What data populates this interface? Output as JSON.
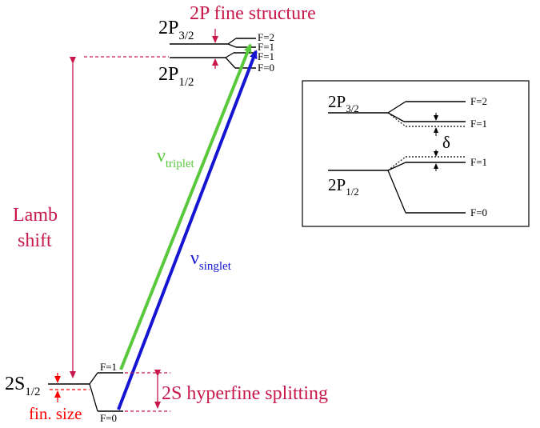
{
  "colors": {
    "crimson": "#c8174b",
    "red": "#ff0000",
    "green": "#5ac83c",
    "blue": "#1414d2",
    "black": "#000000"
  },
  "title_2p_fine": "2P fine structure",
  "levels": {
    "p32": {
      "main": "2P",
      "sub": "3/2"
    },
    "p12": {
      "main": "2P",
      "sub": "1/2"
    },
    "s12": {
      "main": "2S",
      "sub": "1/2"
    }
  },
  "f_labels": {
    "p32_f2": "F=2",
    "p32_f1": "F=1",
    "p12_f1": "F=1",
    "p12_f0": "F=0",
    "s12_f1": "F=1",
    "s12_f0": "F=0"
  },
  "lamb_shift": [
    "Lamb",
    "shift"
  ],
  "hyperfine_label": "2S hyperfine splitting",
  "fin_size_label": "fin. size",
  "nu_triplet": {
    "main": "ν",
    "sub": "triplet"
  },
  "nu_singlet": {
    "main": "ν",
    "sub": "singlet"
  },
  "inset": {
    "p32": {
      "main": "2P",
      "sub": "3/2"
    },
    "p12": {
      "main": "2P",
      "sub": "1/2"
    },
    "f_labels": [
      "F=2",
      "F=1",
      "F=1",
      "F=0"
    ],
    "delta": "δ"
  }
}
